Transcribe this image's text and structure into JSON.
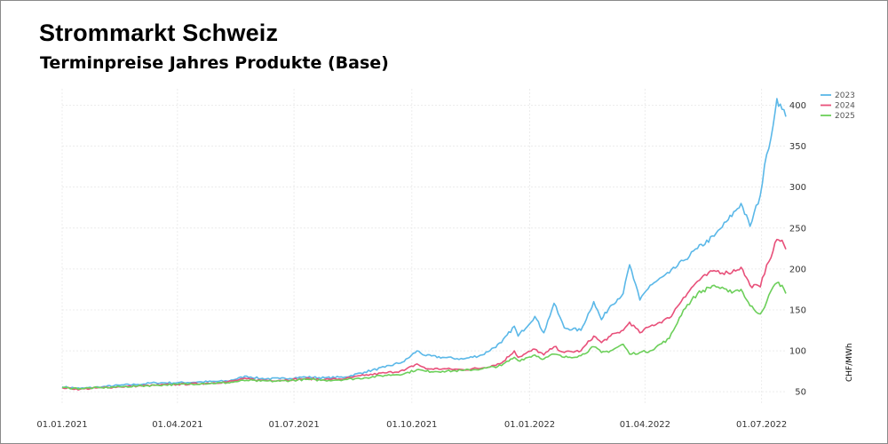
{
  "header": {
    "title": "Strommarkt Schweiz",
    "subtitle": "Terminpreise Jahres Produkte (Base)"
  },
  "chart_data": {
    "type": "line",
    "title": "Strommarkt Schweiz",
    "subtitle": "Terminpreise Jahres Produkte (Base)",
    "xlabel": "",
    "ylabel": "CHF/MWh",
    "x_range": [
      "2021-01-01",
      "2022-07-20"
    ],
    "xticks": [
      "2021-01-01",
      "2021-04-01",
      "2021-07-01",
      "2021-10-01",
      "2022-01-01",
      "2022-04-01",
      "2022-07-01"
    ],
    "xtick_labels": [
      "01.01.2021",
      "01.04.2021",
      "01.07.2021",
      "01.10.2021",
      "01.01.2022",
      "01.04.2022",
      "01.07.2022"
    ],
    "ylim": [
      35,
      420
    ],
    "yticks": [
      50,
      100,
      150,
      200,
      250,
      300,
      350,
      400
    ],
    "grid": true,
    "legend_position": "top-right",
    "series": [
      {
        "name": "2023",
        "color": "#5bb8e8",
        "points": [
          [
            "2021-01-01",
            56
          ],
          [
            "2021-01-15",
            54
          ],
          [
            "2021-02-01",
            56
          ],
          [
            "2021-02-15",
            58
          ],
          [
            "2021-03-01",
            59
          ],
          [
            "2021-03-15",
            61
          ],
          [
            "2021-04-01",
            61
          ],
          [
            "2021-04-20",
            62
          ],
          [
            "2021-05-10",
            63
          ],
          [
            "2021-05-25",
            69
          ],
          [
            "2021-06-05",
            66
          ],
          [
            "2021-06-20",
            66
          ],
          [
            "2021-07-10",
            68
          ],
          [
            "2021-07-25",
            67
          ],
          [
            "2021-08-10",
            68
          ],
          [
            "2021-08-25",
            74
          ],
          [
            "2021-09-10",
            80
          ],
          [
            "2021-09-25",
            87
          ],
          [
            "2021-10-05",
            100
          ],
          [
            "2021-10-12",
            94
          ],
          [
            "2021-10-25",
            92
          ],
          [
            "2021-11-10",
            90
          ],
          [
            "2021-11-25",
            95
          ],
          [
            "2021-12-10",
            110
          ],
          [
            "2021-12-20",
            130
          ],
          [
            "2021-12-23",
            118
          ],
          [
            "2022-01-05",
            142
          ],
          [
            "2022-01-12",
            122
          ],
          [
            "2022-01-20",
            158
          ],
          [
            "2022-01-28",
            128
          ],
          [
            "2022-02-10",
            125
          ],
          [
            "2022-02-20",
            160
          ],
          [
            "2022-02-26",
            138
          ],
          [
            "2022-03-05",
            155
          ],
          [
            "2022-03-15",
            170
          ],
          [
            "2022-03-20",
            205
          ],
          [
            "2022-03-28",
            162
          ],
          [
            "2022-04-05",
            180
          ],
          [
            "2022-04-20",
            195
          ],
          [
            "2022-05-01",
            210
          ],
          [
            "2022-05-12",
            225
          ],
          [
            "2022-05-25",
            240
          ],
          [
            "2022-06-05",
            260
          ],
          [
            "2022-06-15",
            280
          ],
          [
            "2022-06-22",
            252
          ],
          [
            "2022-06-30",
            290
          ],
          [
            "2022-07-05",
            340
          ],
          [
            "2022-07-10",
            375
          ],
          [
            "2022-07-13",
            408
          ],
          [
            "2022-07-17",
            395
          ],
          [
            "2022-07-20",
            386
          ]
        ]
      },
      {
        "name": "2024",
        "color": "#e8507a",
        "points": [
          [
            "2021-01-01",
            55
          ],
          [
            "2021-01-15",
            53
          ],
          [
            "2021-02-01",
            55
          ],
          [
            "2021-02-15",
            56
          ],
          [
            "2021-03-01",
            57
          ],
          [
            "2021-03-15",
            58
          ],
          [
            "2021-04-01",
            59
          ],
          [
            "2021-04-20",
            60
          ],
          [
            "2021-05-10",
            62
          ],
          [
            "2021-05-25",
            66
          ],
          [
            "2021-06-05",
            64
          ],
          [
            "2021-06-20",
            64
          ],
          [
            "2021-07-10",
            66
          ],
          [
            "2021-07-25",
            65
          ],
          [
            "2021-08-10",
            66
          ],
          [
            "2021-08-25",
            70
          ],
          [
            "2021-09-10",
            73
          ],
          [
            "2021-09-25",
            76
          ],
          [
            "2021-10-05",
            84
          ],
          [
            "2021-10-12",
            78
          ],
          [
            "2021-10-25",
            78
          ],
          [
            "2021-11-10",
            77
          ],
          [
            "2021-11-25",
            79
          ],
          [
            "2021-12-10",
            85
          ],
          [
            "2021-12-20",
            100
          ],
          [
            "2021-12-23",
            92
          ],
          [
            "2022-01-05",
            102
          ],
          [
            "2022-01-12",
            95
          ],
          [
            "2022-01-20",
            105
          ],
          [
            "2022-01-28",
            98
          ],
          [
            "2022-02-10",
            100
          ],
          [
            "2022-02-20",
            118
          ],
          [
            "2022-02-26",
            110
          ],
          [
            "2022-03-05",
            118
          ],
          [
            "2022-03-15",
            125
          ],
          [
            "2022-03-20",
            135
          ],
          [
            "2022-03-28",
            122
          ],
          [
            "2022-04-05",
            130
          ],
          [
            "2022-04-20",
            140
          ],
          [
            "2022-05-01",
            165
          ],
          [
            "2022-05-12",
            185
          ],
          [
            "2022-05-25",
            198
          ],
          [
            "2022-06-05",
            195
          ],
          [
            "2022-06-15",
            202
          ],
          [
            "2022-06-22",
            180
          ],
          [
            "2022-06-30",
            178
          ],
          [
            "2022-07-05",
            205
          ],
          [
            "2022-07-10",
            222
          ],
          [
            "2022-07-13",
            236
          ],
          [
            "2022-07-17",
            235
          ],
          [
            "2022-07-20",
            224
          ]
        ]
      },
      {
        "name": "2025",
        "color": "#6ccf5a",
        "points": [
          [
            "2021-01-01",
            55
          ],
          [
            "2021-01-15",
            54
          ],
          [
            "2021-02-01",
            55
          ],
          [
            "2021-02-15",
            56
          ],
          [
            "2021-03-01",
            57
          ],
          [
            "2021-03-15",
            58
          ],
          [
            "2021-04-01",
            59
          ],
          [
            "2021-04-20",
            60
          ],
          [
            "2021-05-10",
            61
          ],
          [
            "2021-05-25",
            64
          ],
          [
            "2021-06-05",
            63
          ],
          [
            "2021-06-20",
            63
          ],
          [
            "2021-07-10",
            65
          ],
          [
            "2021-07-25",
            64
          ],
          [
            "2021-08-10",
            65
          ],
          [
            "2021-08-25",
            67
          ],
          [
            "2021-09-10",
            70
          ],
          [
            "2021-09-25",
            72
          ],
          [
            "2021-10-05",
            77
          ],
          [
            "2021-10-12",
            75
          ],
          [
            "2021-10-25",
            75
          ],
          [
            "2021-11-10",
            76
          ],
          [
            "2021-11-25",
            78
          ],
          [
            "2021-12-10",
            82
          ],
          [
            "2021-12-20",
            92
          ],
          [
            "2021-12-23",
            88
          ],
          [
            "2022-01-05",
            95
          ],
          [
            "2022-01-12",
            90
          ],
          [
            "2022-01-20",
            96
          ],
          [
            "2022-01-28",
            92
          ],
          [
            "2022-02-10",
            94
          ],
          [
            "2022-02-20",
            105
          ],
          [
            "2022-02-26",
            98
          ],
          [
            "2022-03-05",
            100
          ],
          [
            "2022-03-15",
            108
          ],
          [
            "2022-03-20",
            96
          ],
          [
            "2022-03-28",
            98
          ],
          [
            "2022-04-05",
            100
          ],
          [
            "2022-04-20",
            115
          ],
          [
            "2022-05-01",
            150
          ],
          [
            "2022-05-12",
            170
          ],
          [
            "2022-05-25",
            180
          ],
          [
            "2022-06-05",
            172
          ],
          [
            "2022-06-15",
            175
          ],
          [
            "2022-06-22",
            155
          ],
          [
            "2022-06-30",
            145
          ],
          [
            "2022-07-05",
            160
          ],
          [
            "2022-07-10",
            178
          ],
          [
            "2022-07-13",
            183
          ],
          [
            "2022-07-17",
            180
          ],
          [
            "2022-07-20",
            170
          ]
        ]
      }
    ]
  }
}
